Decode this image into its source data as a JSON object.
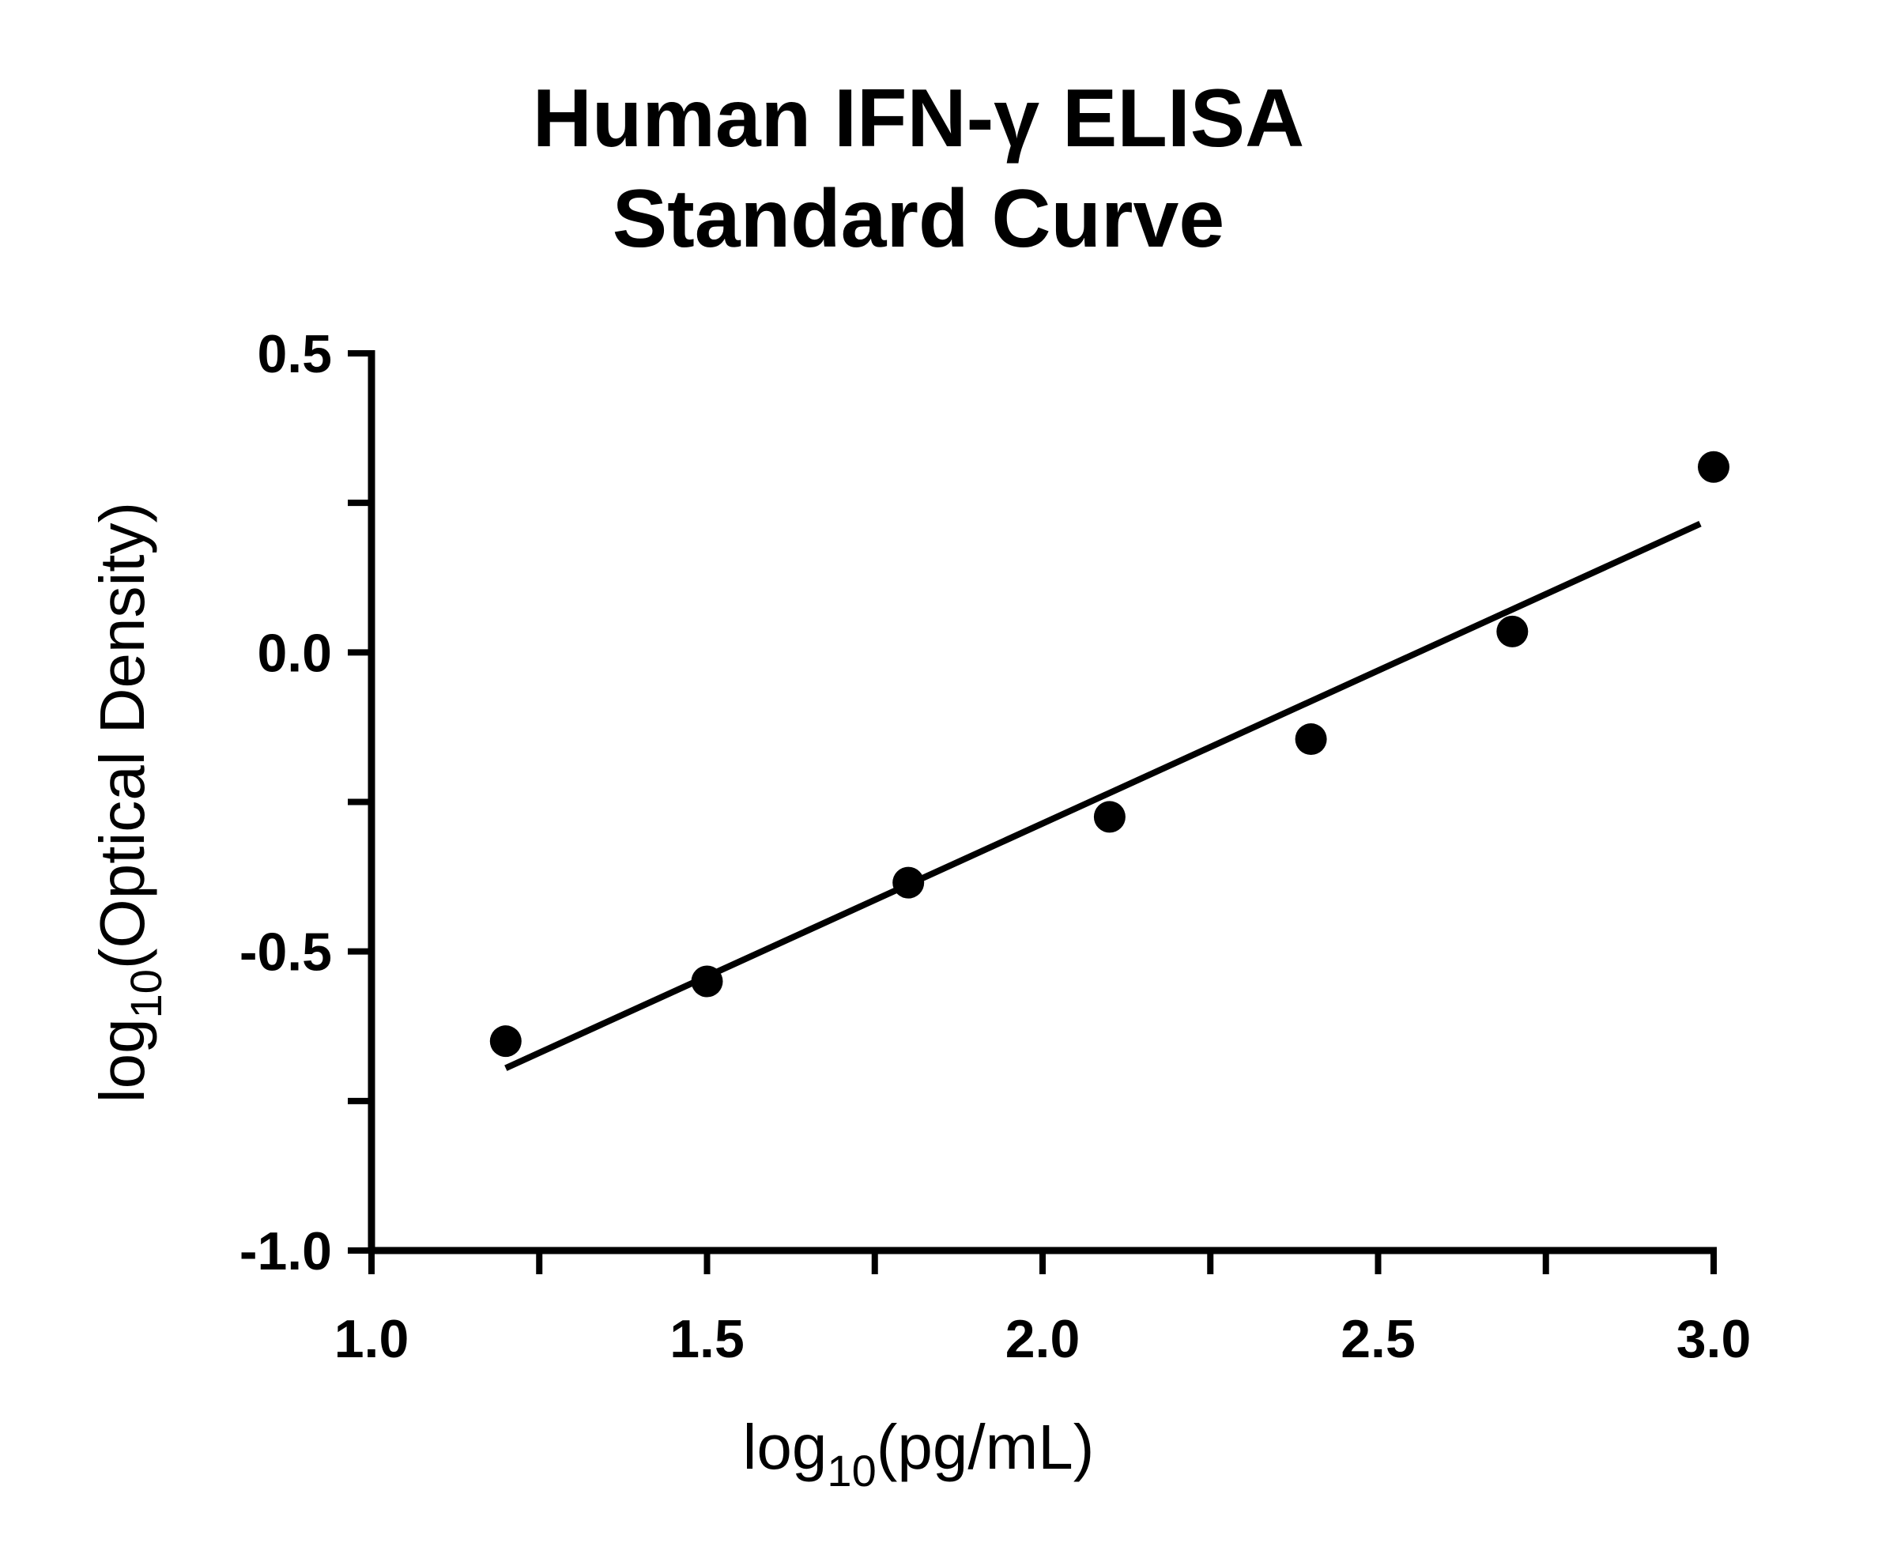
{
  "chart_data": {
    "type": "scatter",
    "title_line1": "Human IFN-γ ELISA",
    "title_line2": "Standard Curve",
    "xlabel": {
      "prefix": "log",
      "subscript": "10",
      "suffix": "(pg/mL)"
    },
    "ylabel": {
      "prefix": "log",
      "subscript": "10",
      "suffix": "(Optical Density)"
    },
    "xlim": [
      1.0,
      3.0
    ],
    "ylim": [
      -1.0,
      0.5
    ],
    "x_ticks": [
      1.0,
      1.25,
      1.5,
      1.75,
      2.0,
      2.25,
      2.5,
      2.75,
      3.0
    ],
    "x_tick_labels": [
      {
        "value": 1.0,
        "label": "1.0"
      },
      {
        "value": 1.5,
        "label": "1.5"
      },
      {
        "value": 2.0,
        "label": "2.0"
      },
      {
        "value": 2.5,
        "label": "2.5"
      },
      {
        "value": 3.0,
        "label": "3.0"
      }
    ],
    "y_ticks": [
      -1.0,
      -0.75,
      -0.5,
      -0.25,
      0.0,
      0.25,
      0.5
    ],
    "y_tick_labels": [
      {
        "value": 0.5,
        "label": "0.5"
      },
      {
        "value": 0.0,
        "label": "0.0"
      },
      {
        "value": -0.5,
        "label": "-0.5"
      },
      {
        "value": -1.0,
        "label": "-1.0"
      }
    ],
    "grid": false,
    "series": [
      {
        "points": [
          {
            "x": 1.2,
            "y": -0.65
          },
          {
            "x": 1.5,
            "y": -0.55
          },
          {
            "x": 1.8,
            "y": -0.385
          },
          {
            "x": 2.1,
            "y": -0.275
          },
          {
            "x": 2.4,
            "y": -0.145
          },
          {
            "x": 2.7,
            "y": 0.035
          },
          {
            "x": 3.0,
            "y": 0.31
          }
        ]
      }
    ],
    "fit_line": {
      "type": "linear",
      "x_range": [
        1.2,
        2.98
      ],
      "y_at_start": -0.695,
      "y_at_end": 0.215
    },
    "colors": {
      "marker": "#000000",
      "line": "#000000",
      "axis": "#000000"
    }
  }
}
